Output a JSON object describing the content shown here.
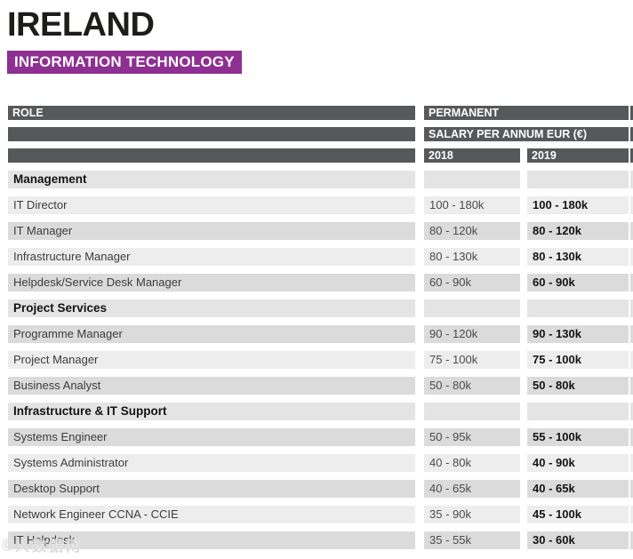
{
  "page": {
    "title": "IRELAND",
    "subtitle": "INFORMATION TECHNOLOGY"
  },
  "colors": {
    "accent_purple": "#8e2f92",
    "header_bar_grey": "#57585a",
    "row_light": "#ededed",
    "row_dark": "#dbdbdb",
    "row_section": "#e4e4e4"
  },
  "table": {
    "headers": {
      "role": "ROLE",
      "group": "PERMANENT",
      "salary_label": "SALARY PER ANNUM EUR (€)",
      "col_2018": "2018",
      "col_2019": "2019"
    },
    "rows": [
      {
        "type": "section",
        "role": "Management",
        "y2018": "",
        "y2019": "",
        "tone": "section"
      },
      {
        "type": "data",
        "role": "IT Director",
        "y2018": "100 - 180k",
        "y2019": "100 - 180k",
        "tone": "light"
      },
      {
        "type": "data",
        "role": "IT Manager",
        "y2018": "80 - 120k",
        "y2019": "80 - 120k",
        "tone": "dark"
      },
      {
        "type": "data",
        "role": "Infrastructure Manager",
        "y2018": "80 - 130k",
        "y2019": "80 - 130k",
        "tone": "light"
      },
      {
        "type": "data",
        "role": "Helpdesk/Service Desk Manager",
        "y2018": "60 - 90k",
        "y2019": "60 - 90k",
        "tone": "dark"
      },
      {
        "type": "section",
        "role": "Project Services",
        "y2018": "",
        "y2019": "",
        "tone": "section"
      },
      {
        "type": "data",
        "role": "Programme Manager",
        "y2018": "90 - 120k",
        "y2019": "90 - 130k",
        "tone": "dark"
      },
      {
        "type": "data",
        "role": "Project Manager",
        "y2018": "75 - 100k",
        "y2019": "75 - 100k",
        "tone": "light"
      },
      {
        "type": "data",
        "role": "Business Analyst",
        "y2018": "50 - 80k",
        "y2019": "50 - 80k",
        "tone": "dark"
      },
      {
        "type": "section",
        "role": "Infrastructure & IT Support",
        "y2018": "",
        "y2019": "",
        "tone": "section"
      },
      {
        "type": "data",
        "role": "Systems Engineer",
        "y2018": "50 - 95k",
        "y2019": "55 - 100k",
        "tone": "dark"
      },
      {
        "type": "data",
        "role": "Systems Administrator",
        "y2018": "40 - 80k",
        "y2019": "40 - 90k",
        "tone": "light"
      },
      {
        "type": "data",
        "role": "Desktop Support",
        "y2018": "40 - 65k",
        "y2019": "40 - 65k",
        "tone": "dark"
      },
      {
        "type": "data",
        "role": "Network Engineer CCNA - CCIE",
        "y2018": "35 - 90k",
        "y2019": "45 - 100k",
        "tone": "light"
      },
      {
        "type": "data",
        "role": "IT Helpdesk",
        "y2018": "35 - 55k",
        "y2019": "30 - 60k",
        "tone": "dark"
      }
    ]
  },
  "watermark": {
    "glyph": "©",
    "text": "人数据网"
  }
}
